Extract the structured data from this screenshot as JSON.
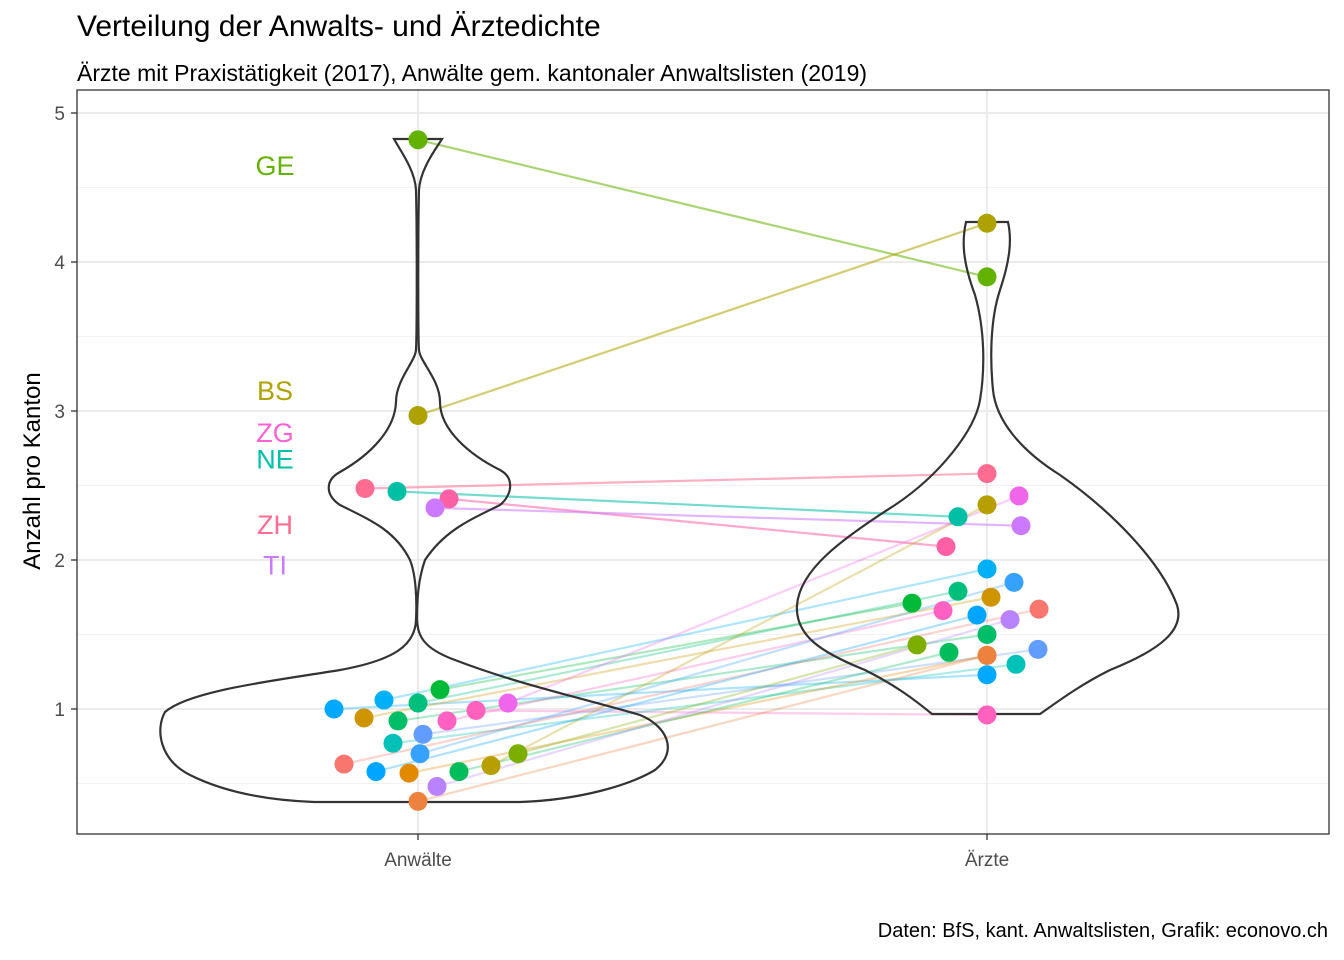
{
  "chart_data": {
    "type": "violin-dotplot",
    "title": "Verteilung der Anwalts- und Ärztedichte",
    "subtitle": "Ärzte mit Praxistätigkeit (2017), Anwälte gem. kantonaler Anwaltslisten (2019)",
    "caption": "Daten: BfS, kant. Anwaltslisten, Grafik: econovo.ch",
    "xlabel": "",
    "ylabel": "Anzahl pro Kanton",
    "categories": [
      "Anwälte",
      "Ärzte"
    ],
    "ylim": [
      0.16,
      5.0
    ],
    "yticks": [
      1,
      2,
      3,
      4,
      5
    ],
    "grid": true,
    "labels": [
      {
        "text": "GE",
        "y": 4.65,
        "color": "#64B200"
      },
      {
        "text": "BS",
        "y": 3.14,
        "color": "#AEA200"
      },
      {
        "text": "ZG",
        "y": 2.86,
        "color": "#FC61D5"
      },
      {
        "text": "NE",
        "y": 2.68,
        "color": "#00C1A7"
      },
      {
        "text": "ZH",
        "y": 2.24,
        "color": "#FF6C91"
      },
      {
        "text": "TI",
        "y": 1.97,
        "color": "#CD79FF"
      }
    ],
    "series": [
      {
        "color": "#64B200",
        "anwaelte": 4.82,
        "aerzte": 3.9,
        "emph": true
      },
      {
        "color": "#AEA200",
        "anwaelte": 2.97,
        "aerzte": 4.26,
        "emph": true
      },
      {
        "color": "#FF6C91",
        "anwaelte": 2.48,
        "aerzte": 2.58,
        "emph": true
      },
      {
        "color": "#00BFA5",
        "anwaelte": 2.46,
        "aerzte": 2.29,
        "emph": true
      },
      {
        "color": "#FF5FA5",
        "anwaelte": 2.41,
        "aerzte": 2.09,
        "emph": true
      },
      {
        "color": "#CD79FF",
        "anwaelte": 2.35,
        "aerzte": 2.23,
        "emph": true
      },
      {
        "color": "#00A9FF",
        "anwaelte": 1.0,
        "aerzte": 1.23
      },
      {
        "color": "#CE9500",
        "anwaelte": 0.94,
        "aerzte": 1.75
      },
      {
        "color": "#00B0F6",
        "anwaelte": 1.06,
        "aerzte": 1.94
      },
      {
        "color": "#00BE67",
        "anwaelte": 0.92,
        "aerzte": 1.5
      },
      {
        "color": "#00BF7D",
        "anwaelte": 1.04,
        "aerzte": 1.79
      },
      {
        "color": "#00BA38",
        "anwaelte": 1.13,
        "aerzte": 1.71
      },
      {
        "color": "#FF61C3",
        "anwaelte": 0.92,
        "aerzte": 1.66
      },
      {
        "color": "#FF62BC",
        "anwaelte": 0.99,
        "aerzte": 0.96
      },
      {
        "color": "#F066EA",
        "anwaelte": 1.04,
        "aerzte": 2.43
      },
      {
        "color": "#00C0B8",
        "anwaelte": 0.77,
        "aerzte": 1.3
      },
      {
        "color": "#619CFF",
        "anwaelte": 0.83,
        "aerzte": 1.4
      },
      {
        "color": "#35A2FF",
        "anwaelte": 0.7,
        "aerzte": 1.85
      },
      {
        "color": "#F8766D",
        "anwaelte": 0.63,
        "aerzte": 1.67
      },
      {
        "color": "#00A5FF",
        "anwaelte": 0.58,
        "aerzte": 1.63
      },
      {
        "color": "#E38900",
        "anwaelte": 0.57,
        "aerzte": 1.36
      },
      {
        "color": "#00BD5C",
        "anwaelte": 0.58,
        "aerzte": 1.38
      },
      {
        "color": "#B79F00",
        "anwaelte": 0.62,
        "aerzte": 2.37
      },
      {
        "color": "#7CAE00",
        "anwaelte": 0.7,
        "aerzte": 1.43
      },
      {
        "color": "#B983FF",
        "anwaelte": 0.48,
        "aerzte": 1.6
      },
      {
        "color": "#ED813E",
        "anwaelte": 0.38,
        "aerzte": 1.36
      }
    ]
  }
}
